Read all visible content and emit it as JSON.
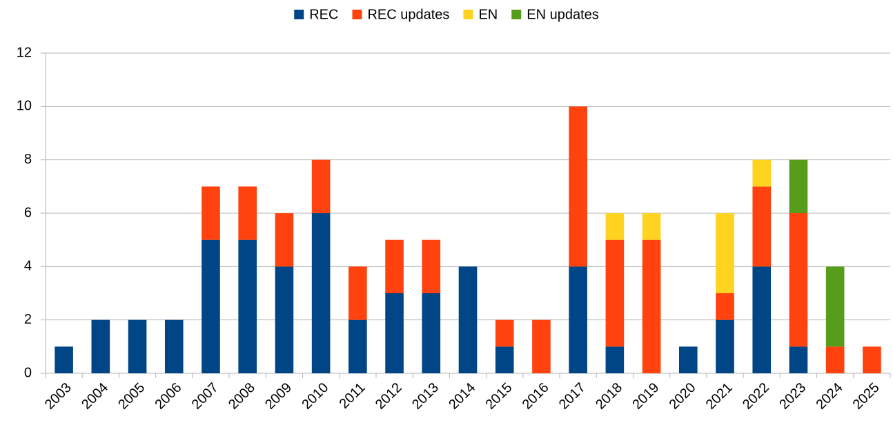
{
  "chart_data": {
    "type": "stacked_bar",
    "categories": [
      "2003",
      "2004",
      "2005",
      "2006",
      "2007",
      "2008",
      "2009",
      "2010",
      "2011",
      "2012",
      "2013",
      "2014",
      "2015",
      "2016",
      "2017",
      "2018",
      "2019",
      "2020",
      "2021",
      "2022",
      "2023",
      "2024",
      "2025"
    ],
    "series": [
      {
        "name": "REC",
        "color": "#004586",
        "values": [
          1,
          2,
          2,
          2,
          5,
          5,
          4,
          6,
          2,
          3,
          3,
          4,
          1,
          0,
          4,
          1,
          0,
          1,
          2,
          4,
          1,
          0,
          0
        ]
      },
      {
        "name": "REC updates",
        "color": "#ff420e",
        "values": [
          0,
          0,
          0,
          0,
          2,
          2,
          2,
          2,
          2,
          2,
          2,
          0,
          1,
          2,
          6,
          4,
          5,
          0,
          1,
          3,
          5,
          1,
          1
        ]
      },
      {
        "name": "EN",
        "color": "#ffd320",
        "values": [
          0,
          0,
          0,
          0,
          0,
          0,
          0,
          0,
          0,
          0,
          0,
          0,
          0,
          0,
          0,
          1,
          1,
          0,
          3,
          1,
          0,
          0,
          0
        ]
      },
      {
        "name": "EN updates",
        "color": "#579d1c",
        "values": [
          0,
          0,
          0,
          0,
          0,
          0,
          0,
          0,
          0,
          0,
          0,
          0,
          0,
          0,
          0,
          0,
          0,
          0,
          0,
          0,
          2,
          3,
          0
        ]
      }
    ],
    "ylim": [
      0,
      12
    ],
    "yticks": [
      0,
      2,
      4,
      6,
      8,
      10,
      12
    ],
    "grid": true,
    "legend": "top"
  }
}
